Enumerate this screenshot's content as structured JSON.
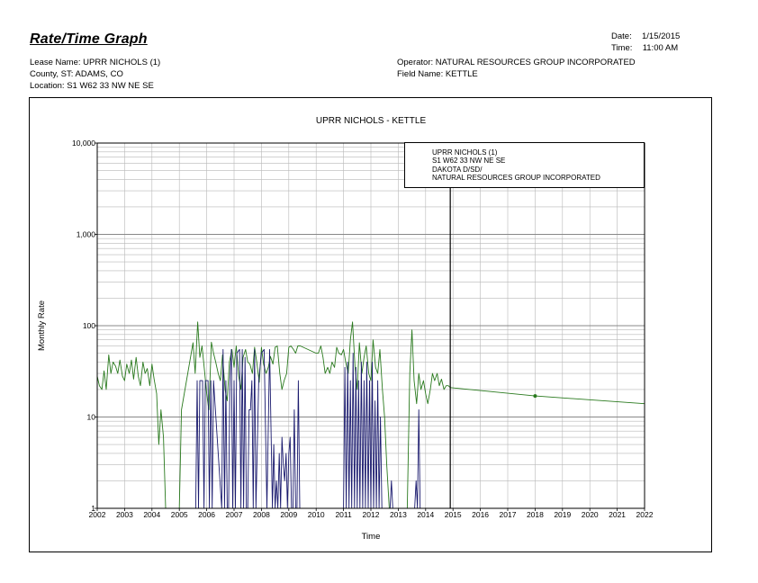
{
  "report": {
    "title": "Rate/Time Graph",
    "date_label": "Date:",
    "date_value": "1/15/2015",
    "time_label": "Time:",
    "time_value": "11:00 AM",
    "lease_line": "Lease Name: UPRR NICHOLS (1)",
    "county_line": "County, ST: ADAMS, CO",
    "location_line": "Location: S1 W62 33 NW NE SE",
    "operator_line": "Operator: NATURAL RESOURCES GROUP INCORPORATED",
    "field_line": "Field Name: KETTLE"
  },
  "legend_box": {
    "lines": [
      "UPRR NICHOLS (1)",
      "S1 W62 33 NW NE SE",
      "DAKOTA D/SD/",
      "NATURAL RESOURCES GROUP INCORPORATED"
    ]
  },
  "colors": {
    "series_green": "#2a7a1e",
    "series_navy": "#1a1a6e",
    "grid": "#b8b8b8",
    "axis": "#000000"
  },
  "chart_data": {
    "type": "line",
    "title": "UPRR NICHOLS - KETTLE",
    "xlabel": "Time",
    "ylabel": "Monthly Rate",
    "yscale": "log",
    "xlim": [
      2002,
      2022
    ],
    "ylim": [
      1,
      10000
    ],
    "x_tick_labels": [
      "2002",
      "2003",
      "2004",
      "2005",
      "2006",
      "2007",
      "2008",
      "2009",
      "2010",
      "2011",
      "2012",
      "2013",
      "2014",
      "2015",
      "2016",
      "2017",
      "2018",
      "2019",
      "2020",
      "2021",
      "2022"
    ],
    "y_tick_labels": [
      "1",
      "10",
      "100",
      "1,000",
      "10,000"
    ],
    "y_tick_values": [
      1,
      10,
      100,
      1000,
      10000
    ],
    "grid": true,
    "forecast_start": 2014.9,
    "series": [
      {
        "x": [
          2002.0,
          2002.08,
          2002.17,
          2002.25,
          2002.33,
          2002.42,
          2002.5,
          2002.58,
          2002.67,
          2002.75,
          2002.83,
          2002.92,
          2003.0,
          2003.08,
          2003.17,
          2003.25,
          2003.33,
          2003.42,
          2003.5,
          2003.58,
          2003.67,
          2003.75,
          2003.83,
          2003.92,
          2004.0,
          2004.08,
          2004.17,
          2004.25,
          2004.33,
          2004.42,
          2004.5,
          2004.58,
          2004.67,
          2005.0,
          2005.08,
          2005.5,
          2005.58,
          2005.67,
          2005.75,
          2005.83,
          2005.92,
          2006.0,
          2006.08,
          2006.17,
          2006.25,
          2006.33,
          2006.42,
          2006.5,
          2006.58,
          2006.67,
          2006.75,
          2006.83,
          2006.92,
          2007.0,
          2007.08,
          2007.17,
          2007.25,
          2007.33,
          2007.42,
          2007.5,
          2007.58,
          2007.67,
          2007.75,
          2007.83,
          2007.92,
          2008.0,
          2008.08,
          2008.17,
          2008.25,
          2008.33,
          2008.42,
          2008.5,
          2008.58,
          2008.67,
          2008.75,
          2008.83,
          2008.92,
          2009.0,
          2009.08,
          2009.17,
          2009.25,
          2009.33,
          2009.42,
          2010.0,
          2010.08,
          2010.17,
          2010.25,
          2010.33,
          2010.42,
          2010.5,
          2010.58,
          2010.67,
          2010.75,
          2010.83,
          2010.92,
          2011.0,
          2011.08,
          2011.17,
          2011.25,
          2011.33,
          2011.42,
          2011.5,
          2011.58,
          2011.67,
          2011.75,
          2011.83,
          2011.92,
          2012.0,
          2012.08,
          2012.17,
          2012.25,
          2012.33,
          2012.42,
          2012.5,
          2012.58,
          2012.67,
          2012.75,
          2013.25,
          2013.33,
          2013.42,
          2013.5,
          2013.58,
          2013.67,
          2013.75,
          2013.83,
          2013.92,
          2014.0,
          2014.08,
          2014.17,
          2014.25,
          2014.33,
          2014.42,
          2014.5,
          2014.58,
          2014.67,
          2014.75,
          2014.83,
          2014.9
        ],
        "y": [
          28,
          22,
          20,
          32,
          20,
          48,
          30,
          40,
          36,
          30,
          42,
          28,
          25,
          38,
          30,
          42,
          26,
          45,
          28,
          22,
          40,
          30,
          34,
          22,
          38,
          26,
          18,
          5,
          12,
          6,
          1,
          1,
          1,
          1,
          12,
          65,
          30,
          110,
          45,
          60,
          32,
          18,
          12,
          66,
          50,
          40,
          30,
          25,
          48,
          20,
          15,
          40,
          55,
          35,
          60,
          28,
          20,
          45,
          55,
          40,
          38,
          30,
          58,
          40,
          24,
          58,
          38,
          30,
          35,
          46,
          38,
          58,
          60,
          30,
          20,
          25,
          30,
          58,
          60,
          55,
          50,
          60,
          60,
          50,
          50,
          60,
          45,
          30,
          35,
          30,
          40,
          35,
          58,
          50,
          48,
          55,
          40,
          30,
          70,
          110,
          35,
          20,
          65,
          30,
          45,
          60,
          30,
          25,
          70,
          35,
          30,
          55,
          20,
          10,
          3,
          1,
          1,
          1,
          1,
          30,
          90,
          25,
          14,
          30,
          20,
          25,
          18,
          14,
          20,
          30,
          25,
          30,
          22,
          26,
          20,
          22,
          22,
          21
        ],
        "color_key": "series_green"
      },
      {
        "x": [
          2005.6,
          2005.65,
          2005.7,
          2005.75,
          2005.85,
          2005.9,
          2005.95,
          2006.0,
          2006.05,
          2006.1,
          2006.15,
          2006.2,
          2006.25,
          2006.55,
          2006.6,
          2006.65,
          2006.7,
          2006.75,
          2006.8,
          2006.85,
          2006.9,
          2006.95,
          2007.0,
          2007.05,
          2007.1,
          2007.2,
          2007.25,
          2007.3,
          2007.35,
          2007.4,
          2007.45,
          2007.5,
          2007.55,
          2007.6,
          2007.65,
          2007.7,
          2007.75,
          2007.8,
          2007.9,
          2008.0,
          2008.1,
          2008.2,
          2008.3,
          2008.4,
          2008.45,
          2008.5,
          2008.55,
          2008.6,
          2008.65,
          2008.7,
          2008.75,
          2008.8,
          2008.85,
          2008.9,
          2008.95,
          2009.0,
          2009.05,
          2009.1,
          2009.15,
          2009.2,
          2009.25,
          2009.3,
          2009.35,
          2009.4,
          2011.0,
          2011.05,
          2011.1,
          2011.15,
          2011.2,
          2011.25,
          2011.3,
          2011.35,
          2011.4,
          2011.45,
          2011.5,
          2011.55,
          2011.6,
          2011.65,
          2011.7,
          2011.75,
          2011.8,
          2011.85,
          2011.9,
          2011.95,
          2012.0,
          2012.05,
          2012.1,
          2012.15,
          2012.2,
          2012.25,
          2012.3,
          2012.35,
          2012.4,
          2012.45,
          2012.5,
          2012.7,
          2012.75,
          2012.8,
          2013.6,
          2013.65,
          2013.7,
          2013.75,
          2013.8
        ],
        "y": [
          1,
          25,
          1,
          25,
          25,
          1,
          25,
          25,
          25,
          1,
          25,
          1,
          25,
          1,
          55,
          1,
          25,
          1,
          1,
          25,
          55,
          1,
          25,
          1,
          50,
          55,
          1,
          55,
          1,
          45,
          1,
          1,
          12,
          12,
          25,
          1,
          55,
          1,
          25,
          50,
          55,
          1,
          55,
          1,
          5,
          1,
          2,
          1,
          4,
          1,
          6,
          3,
          2,
          4,
          1,
          4,
          6,
          1,
          1,
          12,
          1,
          1,
          25,
          1,
          1,
          35,
          1,
          40,
          1,
          25,
          1,
          50,
          1,
          35,
          1,
          25,
          1,
          40,
          1,
          25,
          1,
          40,
          1,
          25,
          1,
          40,
          1,
          15,
          1,
          25,
          1,
          10,
          1,
          1,
          1,
          1,
          2,
          1,
          1,
          2,
          1,
          12,
          1
        ],
        "color_key": "series_navy"
      },
      {
        "x": [
          2014.9,
          2018.0,
          2022.0
        ],
        "y": [
          21,
          17,
          14
        ],
        "color_key": "series_green",
        "markers_x": [
          2018.0
        ]
      }
    ]
  }
}
